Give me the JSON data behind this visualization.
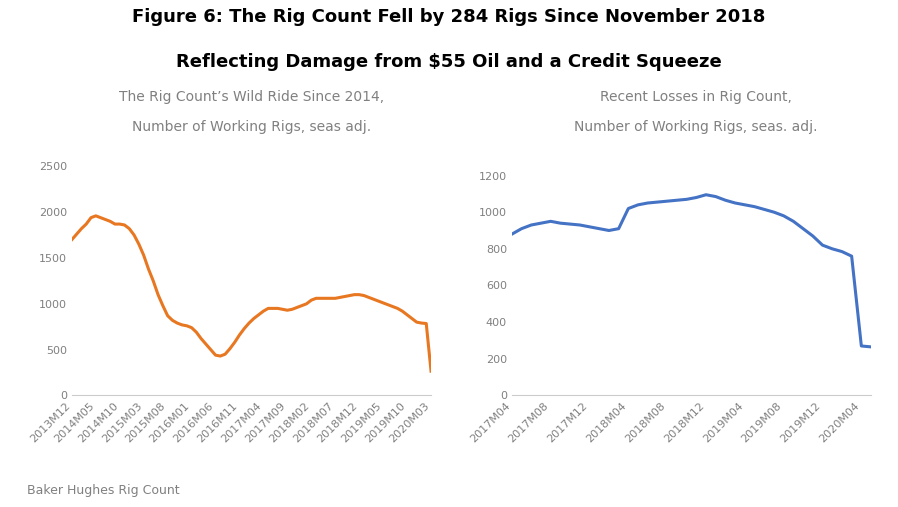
{
  "title_line1": "Figure 6: The Rig Count Fell by 284 Rigs Since November 2018",
  "title_line2": "Reflecting Damage from $55 Oil and a Credit Squeeze",
  "subtitle1_line1": "The Rig Count’s Wild Ride Since 2014,",
  "subtitle1_line2": "Number of Working Rigs, seas adj.",
  "subtitle2_line1": "Recent Losses in Rig Count,",
  "subtitle2_line2": "Number of Working Rigs, seas. adj.",
  "source": "Baker Hughes Rig Count",
  "left_line_color": "#E87722",
  "right_line_color": "#4472C4",
  "left_tick_labels": [
    "2013M12",
    "2014M05",
    "2014M10",
    "2015M03",
    "2015M08",
    "2016M01",
    "2016M06",
    "2016M11",
    "2017M04",
    "2017M09",
    "2018M02",
    "2018M07",
    "2018M12",
    "2019M05",
    "2019M10",
    "2020M03"
  ],
  "right_tick_labels": [
    "2017M04",
    "2017M08",
    "2017M12",
    "2018M04",
    "2018M08",
    "2018M12",
    "2019M04",
    "2019M08",
    "2019M12",
    "2020M04"
  ],
  "left_ylim": [
    0,
    2600
  ],
  "left_yticks": [
    0,
    500,
    1000,
    1500,
    2000,
    2500
  ],
  "right_ylim": [
    0,
    1300
  ],
  "right_yticks": [
    0,
    200,
    400,
    600,
    800,
    1000,
    1200
  ],
  "title_fontsize": 13,
  "subtitle_fontsize": 10,
  "tick_fontsize": 8,
  "source_fontsize": 9,
  "title_color": "#000000",
  "subtitle_color": "#808080",
  "tick_color": "#808080",
  "line_width": 2.2
}
